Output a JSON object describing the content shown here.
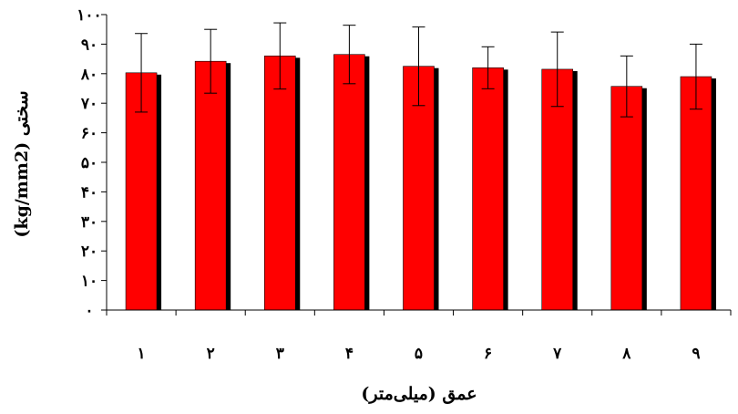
{
  "chart_data": {
    "type": "bar",
    "categories": [
      "۱",
      "۲",
      "۳",
      "۴",
      "۵",
      "۶",
      "۷",
      "۸",
      "۹"
    ],
    "series": [
      {
        "values": [
          80.3,
          84.2,
          86.0,
          86.5,
          82.5,
          82.0,
          81.5,
          75.7,
          79.0
        ],
        "error": [
          13.3,
          10.8,
          11.2,
          9.9,
          13.3,
          7.1,
          12.6,
          10.3,
          11.0
        ]
      }
    ],
    "xlabel": "عمق (میلی‌متر)",
    "ylabel": "سختی (kg/mm2)",
    "ylim": [
      0,
      100
    ],
    "yticks": [
      0,
      10,
      20,
      30,
      40,
      50,
      60,
      70,
      80,
      90,
      100
    ],
    "ytick_labels": [
      "۰",
      "۱۰",
      "۲۰",
      "۳۰",
      "۴۰",
      "۵۰",
      "۶۰",
      "۷۰",
      "۸۰",
      "۹۰",
      "۱۰۰"
    ],
    "grid": false,
    "legend": "none",
    "colors": {
      "bar": "#ff0000",
      "shadow": "#000000",
      "axis": "#000000"
    }
  }
}
